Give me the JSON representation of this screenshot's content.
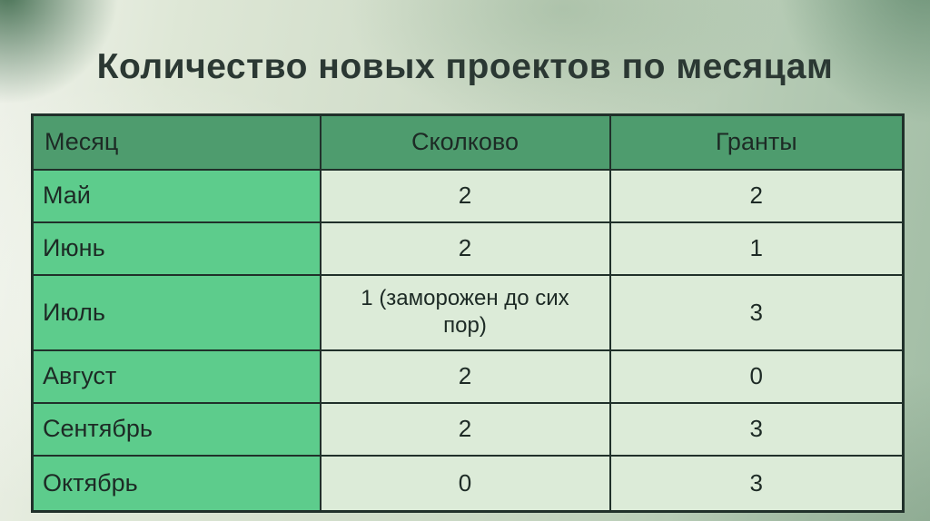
{
  "slide": {
    "title": "Количество новых проектов по месяцам"
  },
  "table": {
    "columns": [
      "Месяц",
      "Сколково",
      "Гранты"
    ],
    "rows": [
      {
        "month": "Май",
        "skolkovo": "2",
        "grants": "2"
      },
      {
        "month": "Июнь",
        "skolkovo": "2",
        "grants": "1"
      },
      {
        "month": "Июль",
        "skolkovo": "1 (заморожен до сих пор)",
        "grants": "3"
      },
      {
        "month": "Август",
        "skolkovo": "2",
        "grants": "0"
      },
      {
        "month": "Сентябрь",
        "skolkovo": "2",
        "grants": "3"
      },
      {
        "month": "Октябрь",
        "skolkovo": "0",
        "grants": "3"
      }
    ]
  },
  "colors": {
    "header_bg": "#4e9c6e",
    "month_column_bg": "#5dcc8c",
    "value_cell_bg": "#dcebd8",
    "border": "#20302a",
    "title_text": "#2b3833",
    "background_light": "#dee7d6",
    "background_dark_corner": "#2c5c3c"
  }
}
